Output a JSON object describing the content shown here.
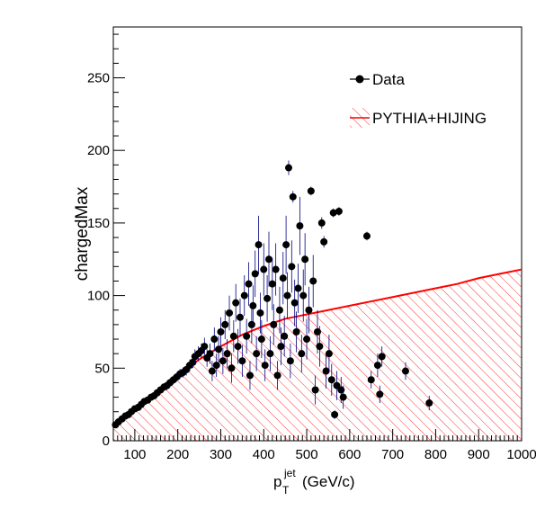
{
  "chart_data": {
    "type": "scatter",
    "xlabel_main": "p",
    "xlabel_sub": "T",
    "xlabel_sup": "jet",
    "xlabel_unit": "(GeV/c)",
    "ylabel": "chargedMax",
    "xlim": [
      50,
      1000
    ],
    "ylim": [
      0,
      285
    ],
    "x_ticks": [
      100,
      200,
      300,
      400,
      500,
      600,
      700,
      800,
      900,
      1000
    ],
    "y_ticks": [
      0,
      50,
      100,
      150,
      200,
      250
    ],
    "legend": {
      "placement": "top-right",
      "entries": [
        "Data",
        "PYTHIA+HIJING"
      ]
    },
    "colors": {
      "data": "#000000",
      "data_error": "#000080",
      "mc": "#ff0000"
    },
    "series": [
      {
        "name": "Data",
        "style": "markers-with-error-bars",
        "points": [
          [
            55,
            11,
            1.5
          ],
          [
            62,
            13,
            1.5
          ],
          [
            70,
            15,
            1.5
          ],
          [
            78,
            17,
            1.5
          ],
          [
            85,
            18,
            1.5
          ],
          [
            92,
            20,
            1.8
          ],
          [
            100,
            22,
            1.8
          ],
          [
            108,
            23,
            2
          ],
          [
            115,
            25,
            2
          ],
          [
            122,
            27,
            2
          ],
          [
            130,
            28,
            2
          ],
          [
            138,
            30,
            2.2
          ],
          [
            145,
            31,
            2.2
          ],
          [
            152,
            33,
            2.5
          ],
          [
            160,
            35,
            2.5
          ],
          [
            168,
            37,
            2.5
          ],
          [
            175,
            38,
            3
          ],
          [
            182,
            40,
            3
          ],
          [
            190,
            42,
            3
          ],
          [
            198,
            44,
            3
          ],
          [
            205,
            46,
            3.5
          ],
          [
            212,
            47,
            3.5
          ],
          [
            220,
            49,
            4
          ],
          [
            228,
            52,
            4
          ],
          [
            235,
            54,
            4
          ],
          [
            240,
            58,
            5
          ],
          [
            248,
            60,
            5
          ],
          [
            255,
            62,
            5
          ],
          [
            262,
            65,
            6
          ],
          [
            268,
            57,
            6
          ],
          [
            275,
            60,
            7
          ],
          [
            280,
            48,
            7
          ],
          [
            285,
            70,
            8
          ],
          [
            290,
            52,
            8
          ],
          [
            295,
            63,
            9
          ],
          [
            300,
            75,
            10
          ],
          [
            305,
            55,
            9
          ],
          [
            310,
            80,
            10
          ],
          [
            315,
            60,
            10
          ],
          [
            320,
            88,
            12
          ],
          [
            325,
            50,
            10
          ],
          [
            330,
            72,
            11
          ],
          [
            335,
            95,
            13
          ],
          [
            340,
            65,
            12
          ],
          [
            345,
            85,
            13
          ],
          [
            350,
            55,
            11
          ],
          [
            355,
            100,
            14
          ],
          [
            360,
            72,
            12
          ],
          [
            365,
            108,
            15
          ],
          [
            368,
            45,
            10
          ],
          [
            372,
            80,
            13
          ],
          [
            375,
            93,
            14
          ],
          [
            380,
            115,
            16
          ],
          [
            383,
            60,
            12
          ],
          [
            388,
            135,
            20
          ],
          [
            392,
            88,
            14
          ],
          [
            395,
            70,
            13
          ],
          [
            400,
            118,
            18
          ],
          [
            403,
            52,
            11
          ],
          [
            408,
            98,
            16
          ],
          [
            412,
            125,
            19
          ],
          [
            415,
            60,
            12
          ],
          [
            420,
            108,
            18
          ],
          [
            423,
            80,
            14
          ],
          [
            428,
            118,
            18
          ],
          [
            432,
            45,
            10
          ],
          [
            437,
            90,
            16
          ],
          [
            440,
            65,
            13
          ],
          [
            445,
            112,
            18
          ],
          [
            448,
            72,
            14
          ],
          [
            452,
            135,
            20
          ],
          [
            455,
            100,
            16
          ],
          [
            458,
            188,
            5
          ],
          [
            462,
            55,
            12
          ],
          [
            465,
            120,
            18
          ],
          [
            468,
            168,
            4
          ],
          [
            472,
            95,
            16
          ],
          [
            476,
            75,
            14
          ],
          [
            480,
            105,
            17
          ],
          [
            484,
            148,
            20
          ],
          [
            488,
            60,
            13
          ],
          [
            492,
            100,
            18
          ],
          [
            496,
            125,
            18
          ],
          [
            500,
            70,
            14
          ],
          [
            505,
            90,
            16
          ],
          [
            510,
            172,
            3
          ],
          [
            515,
            110,
            18
          ],
          [
            520,
            35,
            10
          ],
          [
            525,
            75,
            15
          ],
          [
            530,
            65,
            14
          ],
          [
            535,
            150,
            4
          ],
          [
            540,
            137,
            4
          ],
          [
            545,
            48,
            12
          ],
          [
            552,
            60,
            13
          ],
          [
            558,
            42,
            11
          ],
          [
            562,
            157,
            3
          ],
          [
            565,
            18,
            3
          ],
          [
            570,
            38,
            10
          ],
          [
            575,
            158,
            3
          ],
          [
            580,
            35,
            9
          ],
          [
            585,
            30,
            8
          ],
          [
            640,
            141,
            3
          ],
          [
            650,
            42,
            6
          ],
          [
            665,
            52,
            8
          ],
          [
            670,
            32,
            6
          ],
          [
            675,
            58,
            7
          ],
          [
            730,
            48,
            6
          ],
          [
            785,
            26,
            5
          ]
        ]
      },
      {
        "name": "PYTHIA+HIJING",
        "style": "hatched-histogram",
        "x": [
          50,
          100,
          150,
          200,
          250,
          300,
          350,
          400,
          450,
          500,
          550,
          600,
          650,
          700,
          750,
          800,
          850,
          900,
          950,
          1000
        ],
        "values": [
          11,
          22,
          34,
          45,
          56,
          65,
          73,
          79,
          84,
          87,
          90,
          93,
          96,
          99,
          102,
          105,
          108,
          112,
          115,
          118
        ]
      }
    ]
  }
}
